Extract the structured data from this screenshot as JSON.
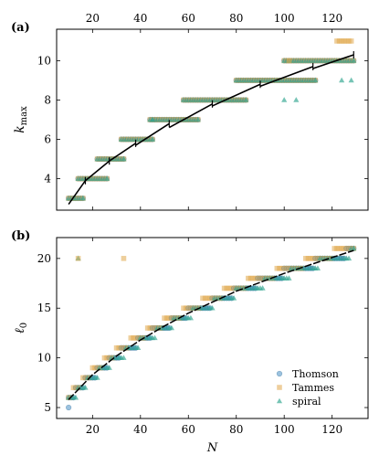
{
  "colors": {
    "thomson": "#4a90c4",
    "tammes": "#e0a84a",
    "spiral": "#2ca58d",
    "fit": "#000000"
  },
  "chart_data": [
    {
      "panel": "(a)",
      "type": "scatter",
      "ylabel_main": "k",
      "ylabel_sub": "max",
      "xlim": [
        5,
        135
      ],
      "ylim": [
        2.4,
        11.6
      ],
      "xticks": [
        20,
        40,
        60,
        80,
        100,
        120
      ],
      "yticks": [
        4,
        6,
        8,
        10
      ],
      "x_axis_labels": "top",
      "levels": [
        {
          "y": 3,
          "xmin": 10,
          "xmax": 16
        },
        {
          "y": 4,
          "xmin": 14,
          "xmax": 26
        },
        {
          "y": 5,
          "xmin": 22,
          "xmax": 33
        },
        {
          "y": 6,
          "xmin": 32,
          "xmax": 45
        },
        {
          "y": 7,
          "xmin": 44,
          "xmax": 64
        },
        {
          "y": 8,
          "xmin": 58,
          "xmax": 84
        },
        {
          "y": 9,
          "xmin": 80,
          "xmax": 113
        },
        {
          "y": 10,
          "xmin": 100,
          "xmax": 129
        },
        {
          "y": 11,
          "xmin": 122,
          "xmax": 128
        }
      ],
      "fit_segments": [
        {
          "x": [
            10,
            17
          ],
          "y": [
            2.7,
            3.9
          ]
        },
        {
          "x": [
            17,
            27
          ],
          "y": [
            3.9,
            4.9
          ]
        },
        {
          "x": [
            27,
            38
          ],
          "y": [
            4.9,
            5.8
          ]
        },
        {
          "x": [
            38,
            52
          ],
          "y": [
            5.7,
            6.8
          ]
        },
        {
          "x": [
            52,
            70
          ],
          "y": [
            6.6,
            7.8
          ]
        },
        {
          "x": [
            70,
            90
          ],
          "y": [
            7.7,
            8.8
          ]
        },
        {
          "x": [
            90,
            112
          ],
          "y": [
            8.7,
            9.7
          ]
        },
        {
          "x": [
            112,
            129
          ],
          "y": [
            9.6,
            10.3
          ]
        }
      ],
      "outliers": [
        {
          "series": "spiral",
          "x": 45,
          "y": 7
        },
        {
          "series": "spiral",
          "x": 100,
          "y": 8
        },
        {
          "series": "spiral",
          "x": 105,
          "y": 8
        },
        {
          "series": "spiral",
          "x": 124,
          "y": 9
        },
        {
          "series": "spiral",
          "x": 128,
          "y": 9
        },
        {
          "series": "tammes",
          "x": 102,
          "y": 10
        }
      ]
    },
    {
      "panel": "(b)",
      "type": "scatter",
      "ylabel_main": "ℓ",
      "ylabel_sub": "0",
      "xlabel": "N",
      "xlim": [
        5,
        135
      ],
      "ylim": [
        3.9,
        22.1
      ],
      "xticks": [
        20,
        40,
        60,
        80,
        100,
        120
      ],
      "yticks": [
        5,
        10,
        15,
        20
      ],
      "x_axis_labels": "bottom",
      "legend_position": "lower-right",
      "legend": [
        "Thomson",
        "Tammes",
        "spiral"
      ],
      "fit_curve": {
        "x": [
          10,
          20,
          30,
          40,
          50,
          60,
          70,
          80,
          90,
          100,
          110,
          120,
          129
        ],
        "y": [
          5.8,
          8.3,
          10.2,
          11.8,
          13.2,
          14.5,
          15.6,
          16.7,
          17.6,
          18.5,
          19.3,
          20.1,
          20.8
        ]
      },
      "outliers": [
        {
          "series": "spiral",
          "x": 14,
          "y": 20
        },
        {
          "series": "tammes",
          "x": 14,
          "y": 20
        },
        {
          "series": "tammes",
          "x": 33,
          "y": 20
        },
        {
          "series": "thomson",
          "x": 10,
          "y": 5
        }
      ]
    }
  ]
}
